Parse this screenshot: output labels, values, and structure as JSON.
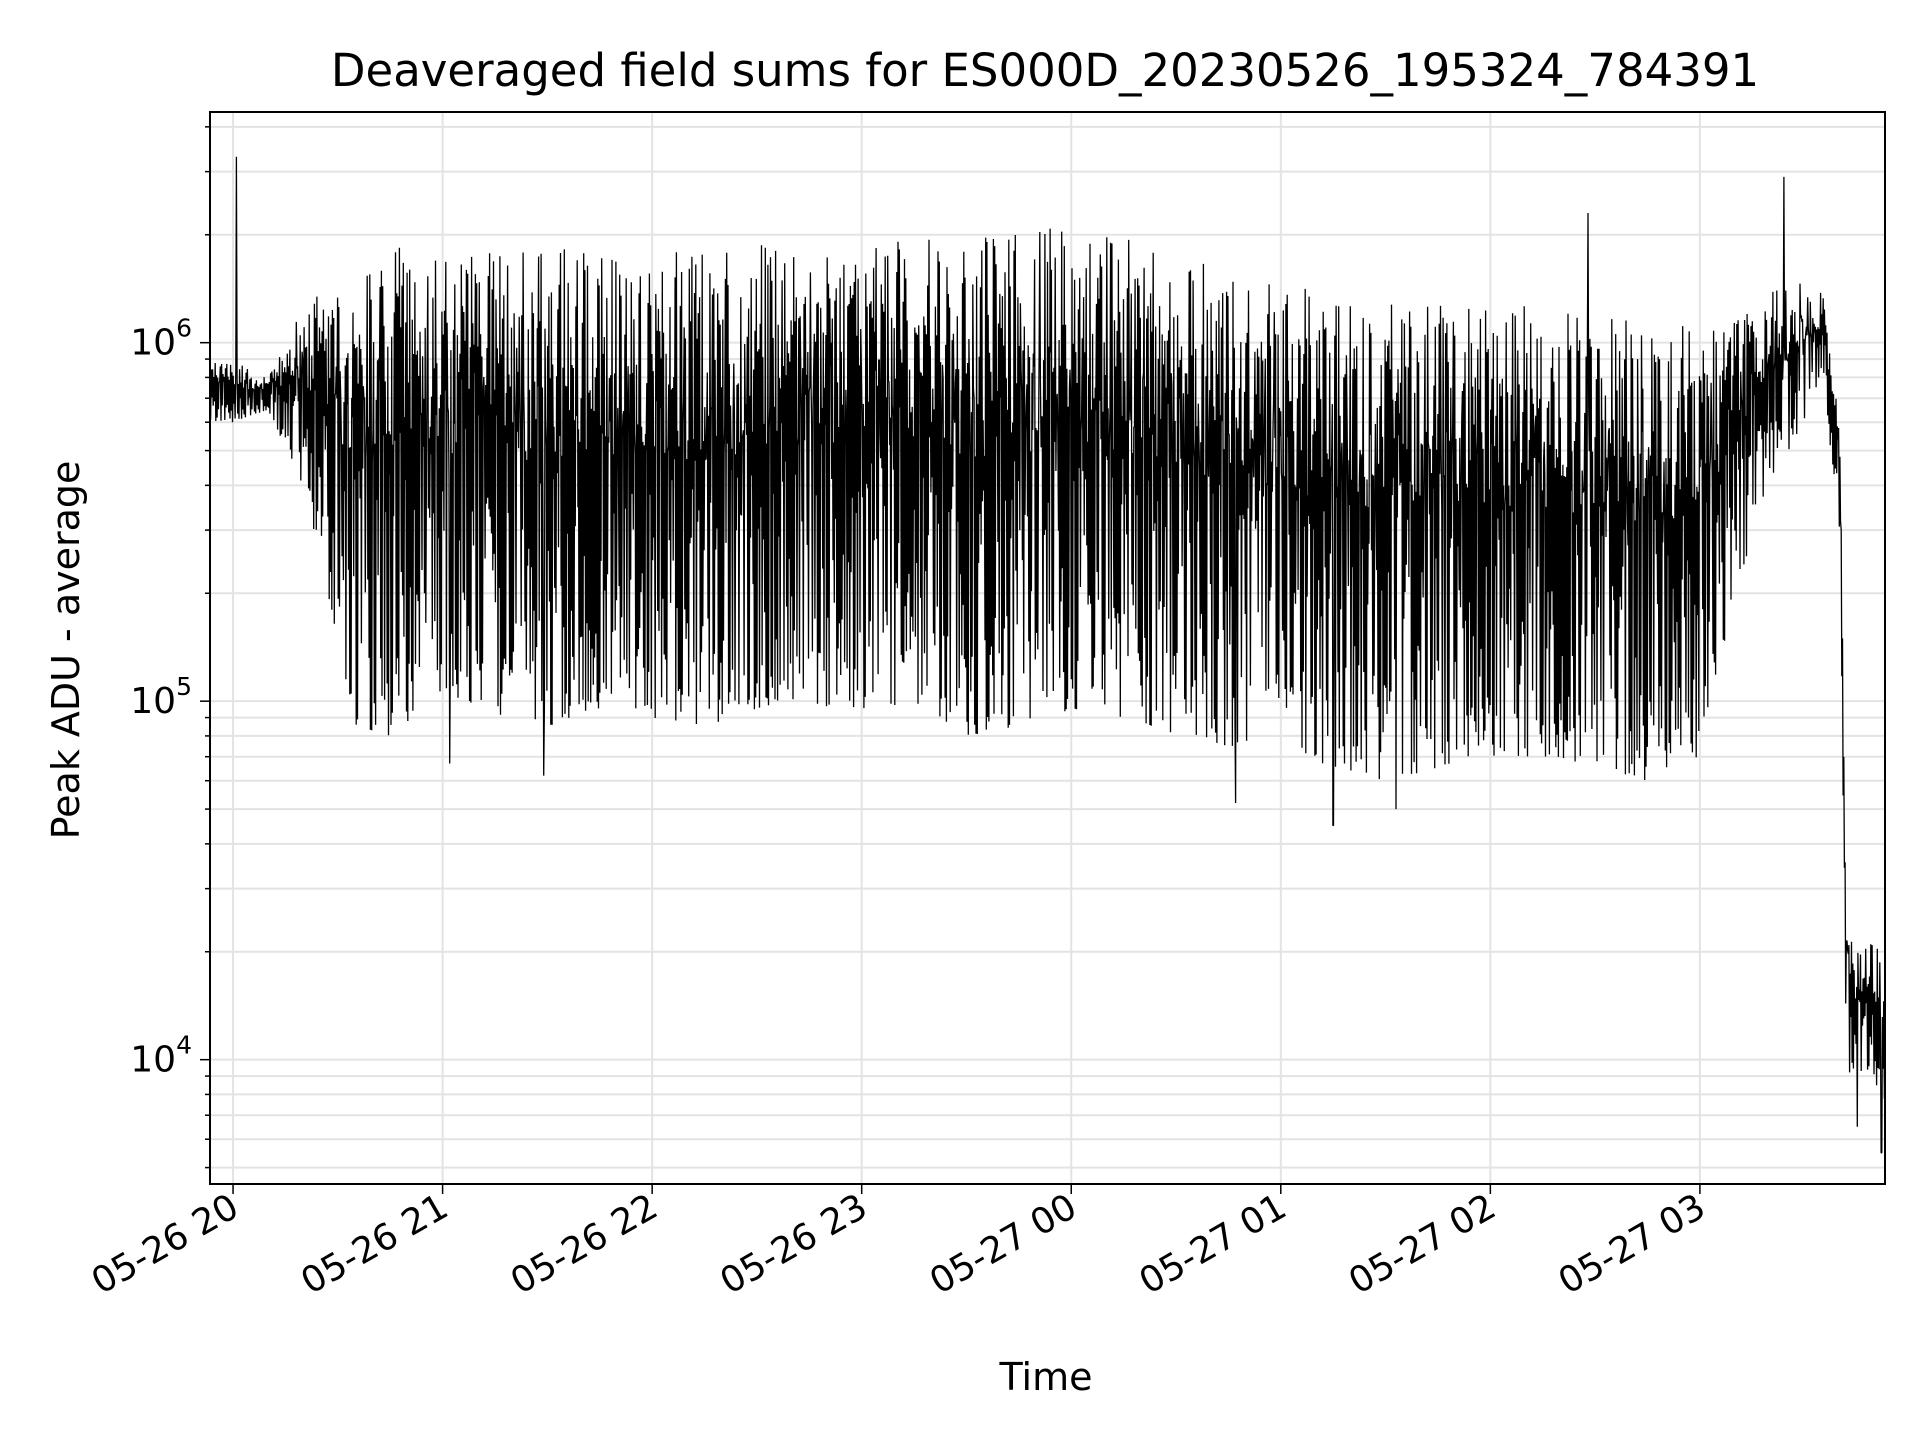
{
  "chart_data": {
    "type": "line",
    "title": "Deaveraged field sums for ES000D_20230526_195324_784391",
    "xlabel": "Time",
    "ylabel": "Peak ADU - average",
    "yscale": "log",
    "grid": true,
    "line_color": "#000000",
    "x_ticks": [
      "2023-05-26T20:00",
      "2023-05-26T21:00",
      "2023-05-26T22:00",
      "2023-05-26T23:00",
      "2023-05-27T00:00",
      "2023-05-27T01:00",
      "2023-05-27T02:00",
      "2023-05-27T03:00"
    ],
    "x_tick_labels": [
      "05-26 20",
      "05-26 21",
      "05-26 22",
      "05-26 23",
      "05-27 00",
      "05-27 01",
      "05-27 02",
      "05-27 03"
    ],
    "xlim": [
      "2023-05-26T19:53:24",
      "2023-05-27T03:53:00"
    ],
    "ylim": [
      4500,
      4400000
    ],
    "y_ticks": [
      10000,
      100000,
      1000000
    ],
    "y_tick_labels": [
      {
        "base": "10",
        "exp": "4"
      },
      {
        "base": "10",
        "exp": "5"
      },
      {
        "base": "10",
        "exp": "6"
      }
    ],
    "series": [
      {
        "envelope_x": [
          "2023-05-26T19:53:24",
          "2023-05-26T20:00",
          "2023-05-26T20:10",
          "2023-05-26T20:20",
          "2023-05-26T20:25",
          "2023-05-26T20:35",
          "2023-05-26T20:45",
          "2023-05-26T21:00",
          "2023-05-26T21:15",
          "2023-05-26T21:30",
          "2023-05-26T21:45",
          "2023-05-26T22:00",
          "2023-05-26T22:15",
          "2023-05-26T22:30",
          "2023-05-26T22:45",
          "2023-05-26T23:00",
          "2023-05-26T23:15",
          "2023-05-26T23:30",
          "2023-05-26T23:45",
          "2023-05-27T00:00",
          "2023-05-27T00:15",
          "2023-05-27T00:30",
          "2023-05-27T00:45",
          "2023-05-27T01:00",
          "2023-05-27T01:15",
          "2023-05-27T01:30",
          "2023-05-27T01:45",
          "2023-05-27T02:00",
          "2023-05-27T02:15",
          "2023-05-27T02:30",
          "2023-05-27T02:45",
          "2023-05-27T03:00",
          "2023-05-27T03:10",
          "2023-05-27T03:20",
          "2023-05-27T03:30",
          "2023-05-27T03:35",
          "2023-05-27T03:40",
          "2023-05-27T03:42",
          "2023-05-27T03:45",
          "2023-05-27T03:50",
          "2023-05-27T03:53"
        ],
        "envelope_high": [
          900000,
          900000,
          800000,
          1300000,
          1400000,
          1500000,
          1900000,
          1800000,
          1800000,
          1800000,
          1900000,
          1800000,
          1900000,
          1900000,
          1900000,
          1900000,
          2000000,
          2000000,
          2000000,
          2200000,
          2000000,
          1800000,
          1600000,
          1500000,
          1400000,
          1300000,
          1300000,
          1300000,
          1300000,
          1200000,
          1200000,
          1100000,
          1200000,
          1400000,
          1500000,
          1400000,
          600000,
          30000,
          20000,
          22000,
          18000
        ],
        "envelope_low": [
          600000,
          600000,
          650000,
          400000,
          250000,
          85000,
          80000,
          100000,
          90000,
          85000,
          95000,
          90000,
          85000,
          95000,
          100000,
          90000,
          100000,
          80000,
          85000,
          95000,
          90000,
          80000,
          75000,
          75000,
          65000,
          60000,
          65000,
          70000,
          70000,
          65000,
          60000,
          70000,
          200000,
          400000,
          600000,
          800000,
          300000,
          9000,
          8000,
          9000,
          6000
        ],
        "spikes": [
          {
            "x": "2023-05-26T20:01",
            "y": 3300000
          },
          {
            "x": "2023-05-26T21:02",
            "y": 67000
          },
          {
            "x": "2023-05-26T21:29",
            "y": 62000
          },
          {
            "x": "2023-05-27T00:47",
            "y": 52000
          },
          {
            "x": "2023-05-27T01:15",
            "y": 45000
          },
          {
            "x": "2023-05-27T01:33",
            "y": 50000
          },
          {
            "x": "2023-05-27T02:28",
            "y": 2300000
          },
          {
            "x": "2023-05-27T03:24",
            "y": 2900000
          },
          {
            "x": "2023-05-27T03:45",
            "y": 6500
          },
          {
            "x": "2023-05-27T03:52",
            "y": 5500
          }
        ]
      }
    ]
  }
}
